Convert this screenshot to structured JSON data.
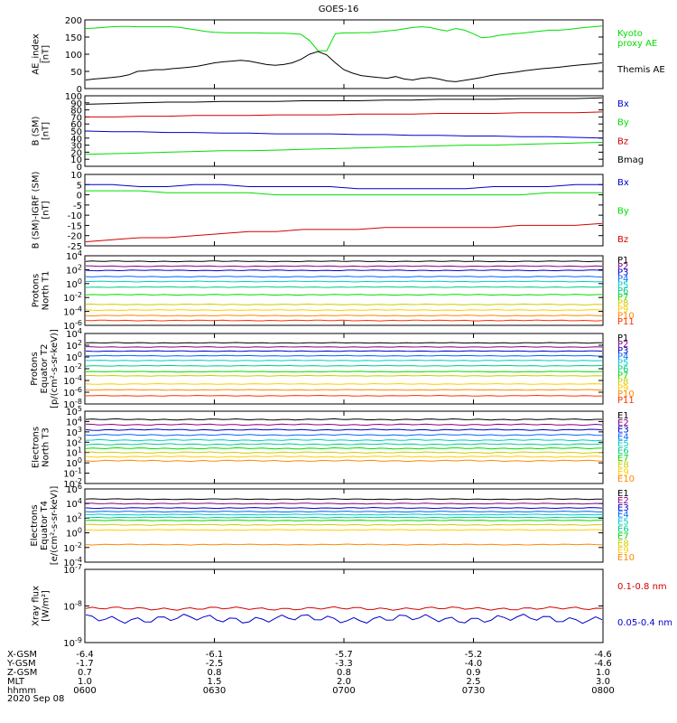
{
  "title": "GOES-16",
  "date": "2020 Sep 08",
  "colors": {
    "black": "#000000",
    "red": "#d40000",
    "green": "#00dd00",
    "blue": "#0000cc",
    "P": [
      "#000000",
      "#8a0080",
      "#0000cc",
      "#0066ff",
      "#00cccc",
      "#00cc88",
      "#00dd00",
      "#cccc00",
      "#ffcc00",
      "#ff8800",
      "#ff3300",
      "#cc0000"
    ],
    "E": [
      "#000000",
      "#8a0080",
      "#0000cc",
      "#0066ff",
      "#00cccc",
      "#00cc88",
      "#00dd00",
      "#cccc00",
      "#ffcc00",
      "#ff8800",
      "#ff3300",
      "#cc0000"
    ]
  },
  "chart_data": [
    {
      "type": "line",
      "id": "ae",
      "ylabel": [
        "AE_index",
        "[nT]"
      ],
      "ylim": [
        0,
        200
      ],
      "yticks": [
        "0",
        "50",
        "100",
        "150",
        "200"
      ],
      "x": [
        0,
        2,
        4,
        6,
        8,
        10,
        12,
        14,
        16,
        18,
        20,
        22,
        24,
        26,
        28,
        30,
        32,
        34,
        36,
        38,
        40,
        42,
        44,
        46,
        48,
        50,
        52,
        54,
        56,
        58,
        60,
        62,
        64,
        66,
        68,
        70,
        72,
        74,
        76,
        78,
        80,
        82,
        84,
        86,
        88,
        90,
        92,
        94,
        96,
        98,
        100,
        102,
        104,
        106,
        108,
        110,
        112,
        114,
        116,
        118,
        120
      ],
      "series": [
        {
          "name": "Kyoto\nproxy AE",
          "color": "green",
          "values": [
            175,
            176,
            178,
            180,
            181,
            181,
            180,
            180,
            180,
            180,
            180,
            178,
            174,
            170,
            166,
            164,
            163,
            162,
            162,
            162,
            162,
            161,
            161,
            161,
            160,
            158,
            140,
            110,
            110,
            160,
            162,
            162,
            163,
            163,
            165,
            168,
            170,
            174,
            178,
            180,
            178,
            172,
            168,
            175,
            170,
            160,
            148,
            150,
            155,
            158,
            160,
            162,
            165,
            168,
            170,
            170,
            172,
            175,
            178,
            180,
            182
          ]
        },
        {
          "name": "Themis AE",
          "color": "black",
          "values": [
            25,
            28,
            30,
            32,
            35,
            40,
            50,
            52,
            55,
            55,
            58,
            60,
            62,
            65,
            70,
            75,
            78,
            80,
            82,
            80,
            75,
            70,
            68,
            70,
            75,
            85,
            100,
            108,
            98,
            75,
            55,
            45,
            38,
            35,
            32,
            30,
            35,
            28,
            25,
            30,
            32,
            28,
            22,
            20,
            24,
            28,
            32,
            38,
            42,
            45,
            48,
            52,
            55,
            58,
            60,
            62,
            65,
            68,
            70,
            72,
            75
          ]
        }
      ]
    },
    {
      "type": "line",
      "id": "bsm",
      "ylabel": [
        "B (SM)",
        "[nT]"
      ],
      "ylim": [
        0,
        100
      ],
      "yticks": [
        "0",
        "10",
        "20",
        "30",
        "40",
        "50",
        "60",
        "70",
        "80",
        "90",
        "100"
      ],
      "series": [
        {
          "name": "Bx",
          "color": "blue",
          "values": [
            50,
            49,
            49,
            48,
            48,
            47,
            47,
            46,
            46,
            46,
            45,
            45,
            44,
            44,
            43,
            43,
            42,
            42,
            41,
            40
          ]
        },
        {
          "name": "By",
          "color": "green",
          "values": [
            17,
            18,
            19,
            20,
            21,
            22,
            22,
            23,
            24,
            25,
            26,
            27,
            28,
            29,
            30,
            30,
            31,
            32,
            33,
            34
          ]
        },
        {
          "name": "Bz",
          "color": "red",
          "values": [
            70,
            70,
            71,
            71,
            72,
            72,
            72,
            73,
            73,
            73,
            74,
            74,
            74,
            75,
            75,
            75,
            76,
            76,
            76,
            77
          ]
        },
        {
          "name": "Bmag",
          "color": "black",
          "values": [
            88,
            89,
            90,
            91,
            91,
            92,
            92,
            92,
            93,
            93,
            93,
            94,
            94,
            95,
            95,
            95,
            96,
            96,
            96,
            97
          ]
        }
      ]
    },
    {
      "type": "line",
      "id": "bigrf",
      "ylabel": [
        "B (SM)-IGRF (SM)",
        "[nT]"
      ],
      "ylim": [
        -25,
        10
      ],
      "yticks": [
        "-25",
        "-20",
        "-15",
        "-10",
        "-5",
        "0",
        "5",
        "10"
      ],
      "series": [
        {
          "name": "Bx",
          "color": "blue",
          "values": [
            5,
            5,
            4,
            4,
            5,
            5,
            4,
            4,
            4,
            4,
            3,
            3,
            3,
            3,
            3,
            4,
            4,
            4,
            5,
            5
          ]
        },
        {
          "name": "By",
          "color": "green",
          "values": [
            2,
            2,
            2,
            1,
            1,
            1,
            1,
            0,
            0,
            0,
            0,
            0,
            0,
            0,
            0,
            0,
            0,
            1,
            1,
            1
          ]
        },
        {
          "name": "Bz",
          "color": "red",
          "values": [
            -23,
            -22,
            -21,
            -21,
            -20,
            -19,
            -18,
            -18,
            -17,
            -17,
            -17,
            -16,
            -16,
            -16,
            -16,
            -16,
            -15,
            -15,
            -15,
            -14
          ]
        }
      ]
    },
    {
      "type": "line",
      "id": "pn",
      "log": true,
      "ylabel": [
        "Protons",
        "North T1"
      ],
      "ylim": [
        -6,
        4
      ],
      "yticks": [
        "10^-6",
        "10^-4",
        "10^-2",
        "10^0",
        "10^2",
        "10^4"
      ],
      "series": [
        {
          "name": "P1",
          "color": "P0",
          "values": [
            3.2
          ]
        },
        {
          "name": "P2",
          "color": "P1",
          "values": [
            2.5
          ]
        },
        {
          "name": "P3",
          "color": "P2",
          "values": [
            1.9
          ]
        },
        {
          "name": "P4",
          "color": "P3",
          "values": [
            1.0
          ]
        },
        {
          "name": "P5",
          "color": "P4",
          "values": [
            0.3
          ]
        },
        {
          "name": "P6",
          "color": "P5",
          "values": [
            -0.5
          ]
        },
        {
          "name": "P7",
          "color": "P6",
          "values": [
            -1.6
          ]
        },
        {
          "name": "P8",
          "color": "P7",
          "values": [
            -3.0
          ]
        },
        {
          "name": "P9",
          "color": "P8",
          "values": [
            -3.8
          ]
        },
        {
          "name": "P10",
          "color": "P9",
          "values": [
            -4.6
          ]
        },
        {
          "name": "P11",
          "color": "P10",
          "values": [
            -5.3
          ]
        }
      ]
    },
    {
      "type": "line",
      "id": "pe",
      "log": true,
      "ylabel": [
        "Protons",
        "Equator T2",
        "[p/(cm²-s-sr-keV)]"
      ],
      "ylim": [
        -8,
        4
      ],
      "yticks": [
        "10^-8",
        "10^-6",
        "10^-4",
        "10^-2",
        "10^0",
        "10^2",
        "10^4"
      ],
      "series": [
        {
          "name": "P1",
          "color": "P0",
          "values": [
            2.4
          ]
        },
        {
          "name": "P2",
          "color": "P1",
          "values": [
            1.7
          ]
        },
        {
          "name": "P3",
          "color": "P2",
          "values": [
            1.0
          ]
        },
        {
          "name": "P4",
          "color": "P3",
          "values": [
            0.2
          ]
        },
        {
          "name": "P5",
          "color": "P4",
          "values": [
            -0.6
          ]
        },
        {
          "name": "P6",
          "color": "P5",
          "values": [
            -1.5
          ]
        },
        {
          "name": "P7",
          "color": "P6",
          "values": [
            -2.5
          ]
        },
        {
          "name": "P8",
          "color": "P7",
          "values": [
            -3.2
          ]
        },
        {
          "name": "P9",
          "color": "P8",
          "values": [
            -4.6
          ]
        },
        {
          "name": "P10",
          "color": "P9",
          "values": [
            -5.6
          ]
        },
        {
          "name": "P11",
          "color": "P10",
          "values": [
            -6.6
          ]
        }
      ]
    },
    {
      "type": "line",
      "id": "en",
      "log": true,
      "ylabel": [
        "Electrons",
        "North T3"
      ],
      "ylim": [
        -2,
        5
      ],
      "yticks": [
        "10^-2",
        "10^-1",
        "10^0",
        "10^1",
        "10^2",
        "10^3",
        "10^4",
        "10^5"
      ],
      "series": [
        {
          "name": "E1",
          "color": "E0",
          "values": [
            4.2
          ]
        },
        {
          "name": "E2",
          "color": "E1",
          "values": [
            3.7
          ]
        },
        {
          "name": "E3",
          "color": "E2",
          "values": [
            3.2
          ]
        },
        {
          "name": "E4",
          "color": "E3",
          "values": [
            2.7
          ]
        },
        {
          "name": "E5",
          "color": "E4",
          "values": [
            2.2
          ]
        },
        {
          "name": "E6",
          "color": "E5",
          "values": [
            1.8
          ]
        },
        {
          "name": "E7",
          "color": "E6",
          "values": [
            1.4
          ]
        },
        {
          "name": "E8",
          "color": "E7",
          "values": [
            1.0
          ]
        },
        {
          "name": "E9",
          "color": "E8",
          "values": [
            0.6
          ]
        },
        {
          "name": "E10",
          "color": "E9",
          "values": [
            0.2
          ]
        }
      ]
    },
    {
      "type": "line",
      "id": "ee",
      "log": true,
      "ylabel": [
        "Electrons",
        "Equator T4",
        "[e/(cm²-s-sr-keV)]"
      ],
      "ylim": [
        -4,
        6
      ],
      "yticks": [
        "10^-4",
        "10^-2",
        "10^0",
        "10^2",
        "10^4",
        "10^6"
      ],
      "series": [
        {
          "name": "E1",
          "color": "E0",
          "values": [
            4.6
          ]
        },
        {
          "name": "E2",
          "color": "E1",
          "values": [
            4.0
          ]
        },
        {
          "name": "E3",
          "color": "E2",
          "values": [
            3.4
          ]
        },
        {
          "name": "E4",
          "color": "E3",
          "values": [
            2.9
          ]
        },
        {
          "name": "E5",
          "color": "E4",
          "values": [
            2.5
          ]
        },
        {
          "name": "E6",
          "color": "E5",
          "values": [
            2.1
          ]
        },
        {
          "name": "E7",
          "color": "E6",
          "values": [
            1.7
          ]
        },
        {
          "name": "E8",
          "color": "E7",
          "values": [
            1.1
          ]
        },
        {
          "name": "E9",
          "color": "E8",
          "values": [
            0.4
          ]
        },
        {
          "name": "E10",
          "color": "E9",
          "values": [
            -1.6
          ]
        }
      ]
    },
    {
      "type": "line",
      "id": "xray",
      "log": true,
      "ylabel": [
        "Xray flux",
        "[W/m²]"
      ],
      "ylim": [
        -9,
        -7
      ],
      "yticks": [
        "10^-9",
        "10^-8",
        "10^-7"
      ],
      "series": [
        {
          "name": "0.1-0.8 nm",
          "color": "red",
          "values": [
            -8.07
          ]
        },
        {
          "name": "0.05-0.4 nm",
          "color": "blue",
          "values": [
            -8.35
          ]
        }
      ]
    }
  ],
  "xaxis": {
    "rows": [
      {
        "label": "X-GSM",
        "values": [
          "-6.4",
          "-6.1",
          "-5.7",
          "-5.2",
          "-4.6"
        ]
      },
      {
        "label": "Y-GSM",
        "values": [
          "-1.7",
          "-2.5",
          "-3.3",
          "-4.0",
          "-4.6"
        ]
      },
      {
        "label": "Z-GSM",
        "values": [
          "0.7",
          "0.8",
          "0.8",
          "0.9",
          "1.0"
        ]
      },
      {
        "label": "MLT",
        "values": [
          "1.0",
          "1.5",
          "2.0",
          "2.5",
          "3.0"
        ]
      },
      {
        "label": "hhmm",
        "values": [
          "0600",
          "0630",
          "0700",
          "0730",
          "0800"
        ]
      }
    ]
  }
}
